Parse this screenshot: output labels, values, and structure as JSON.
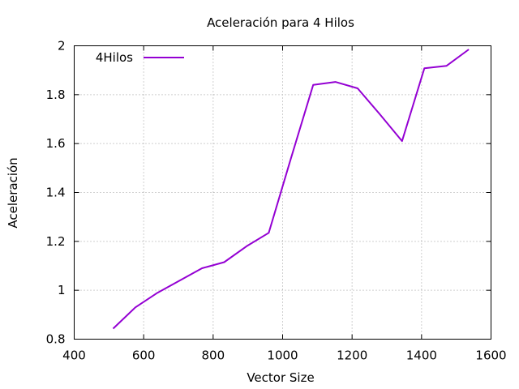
{
  "chart_data": {
    "type": "line",
    "title": "Aceleración para 4 Hilos",
    "xlabel": "Vector Size",
    "ylabel": "Aceleración",
    "xlim": [
      400,
      1600
    ],
    "ylim": [
      0.8,
      2.0
    ],
    "xticks": [
      400,
      600,
      800,
      1000,
      1200,
      1400,
      1600
    ],
    "yticks": [
      0.8,
      1.0,
      1.2,
      1.4,
      1.6,
      1.8,
      2.0
    ],
    "xtick_labels": [
      "400",
      "600",
      "800",
      "1000",
      "1200",
      "1400",
      "1600"
    ],
    "ytick_labels": [
      "0.8",
      "1",
      "1.2",
      "1.4",
      "1.6",
      "1.8",
      "2"
    ],
    "grid": true,
    "legend_position": "top-left",
    "series": [
      {
        "name": "4Hilos",
        "color": "#9400d3",
        "x": [
          512,
          576,
          640,
          704,
          768,
          832,
          896,
          960,
          1024,
          1088,
          1152,
          1216,
          1280,
          1344,
          1408,
          1472,
          1536
        ],
        "y": [
          0.843,
          0.93,
          0.99,
          1.04,
          1.09,
          1.115,
          1.18,
          1.235,
          1.54,
          1.84,
          1.852,
          1.826,
          1.72,
          1.61,
          1.908,
          1.918,
          1.985
        ]
      }
    ]
  }
}
